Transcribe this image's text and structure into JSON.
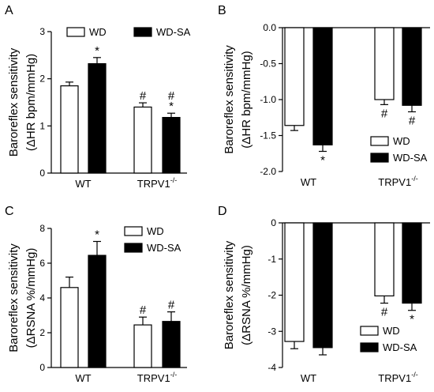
{
  "chart_data": [
    {
      "type": "bar",
      "panel": "A",
      "ylabel_line1": "Baroreflex sensitivity",
      "ylabel_line2": "(ΔHR bpm/mmHg)",
      "ylim": [
        0,
        3
      ],
      "yticks": [
        0,
        1,
        2,
        3
      ],
      "categories": [
        "WT",
        "TRPV1"
      ],
      "category_sup": [
        "",
        "-/-"
      ],
      "legend_position": "top",
      "series": [
        {
          "name": "WD",
          "fill": "#ffffff",
          "values": [
            1.85,
            1.4
          ],
          "err": [
            0.08,
            0.09
          ],
          "marks": [
            "",
            "#"
          ]
        },
        {
          "name": "WD-SA",
          "fill": "#000000",
          "values": [
            2.32,
            1.18
          ],
          "err": [
            0.13,
            0.09
          ],
          "marks": [
            "*",
            "#\n*"
          ]
        }
      ]
    },
    {
      "type": "bar",
      "panel": "B",
      "ylabel_line1": "Baroreflex sensitivity",
      "ylabel_line2": "(ΔHR bpm/mmHg)",
      "ylim": [
        -2.0,
        0.0
      ],
      "yticks": [
        0.0,
        -0.5,
        -1.0,
        -1.5,
        -2.0
      ],
      "tick_decimals": 1,
      "categories": [
        "WT",
        "TRPV1"
      ],
      "category_sup": [
        "",
        "-/-"
      ],
      "legend_position": "bottom-right",
      "series": [
        {
          "name": "WD",
          "fill": "#ffffff",
          "values": [
            -1.36,
            -1.0
          ],
          "err": [
            0.07,
            0.07
          ],
          "marks": [
            "",
            "#"
          ]
        },
        {
          "name": "WD-SA",
          "fill": "#000000",
          "values": [
            -1.63,
            -1.08
          ],
          "err": [
            0.09,
            0.09
          ],
          "marks": [
            "*",
            "#"
          ]
        }
      ]
    },
    {
      "type": "bar",
      "panel": "C",
      "ylabel_line1": "Baroreflex sensitivity",
      "ylabel_line2": "(ΔRSNA %/mmHg)",
      "ylim": [
        0,
        8
      ],
      "yticks": [
        0,
        2,
        4,
        6,
        8
      ],
      "categories": [
        "WT",
        "TRPV1"
      ],
      "category_sup": [
        "",
        "-/-"
      ],
      "legend_position": "top-right",
      "series": [
        {
          "name": "WD",
          "fill": "#ffffff",
          "values": [
            4.6,
            2.45
          ],
          "err": [
            0.6,
            0.45
          ],
          "marks": [
            "",
            "#"
          ]
        },
        {
          "name": "WD-SA",
          "fill": "#000000",
          "values": [
            6.45,
            2.65
          ],
          "err": [
            0.8,
            0.55
          ],
          "marks": [
            "*",
            "#"
          ]
        }
      ]
    },
    {
      "type": "bar",
      "panel": "D",
      "ylabel_line1": "Baroreflex sensitivity",
      "ylabel_line2": "(ΔRSNA %/mmHg)",
      "ylim": [
        -4,
        0
      ],
      "yticks": [
        0,
        -1,
        -2,
        -3,
        -4
      ],
      "categories": [
        "WT",
        "TRPV1"
      ],
      "category_sup": [
        "",
        "-/-"
      ],
      "legend_position": "bottom-right",
      "series": [
        {
          "name": "WD",
          "fill": "#ffffff",
          "values": [
            -3.28,
            -2.02
          ],
          "err": [
            0.2,
            0.2
          ],
          "marks": [
            "",
            "#"
          ]
        },
        {
          "name": "WD-SA",
          "fill": "#000000",
          "values": [
            -3.45,
            -2.22
          ],
          "err": [
            0.2,
            0.2
          ],
          "marks": [
            "",
            "*"
          ]
        }
      ]
    }
  ]
}
